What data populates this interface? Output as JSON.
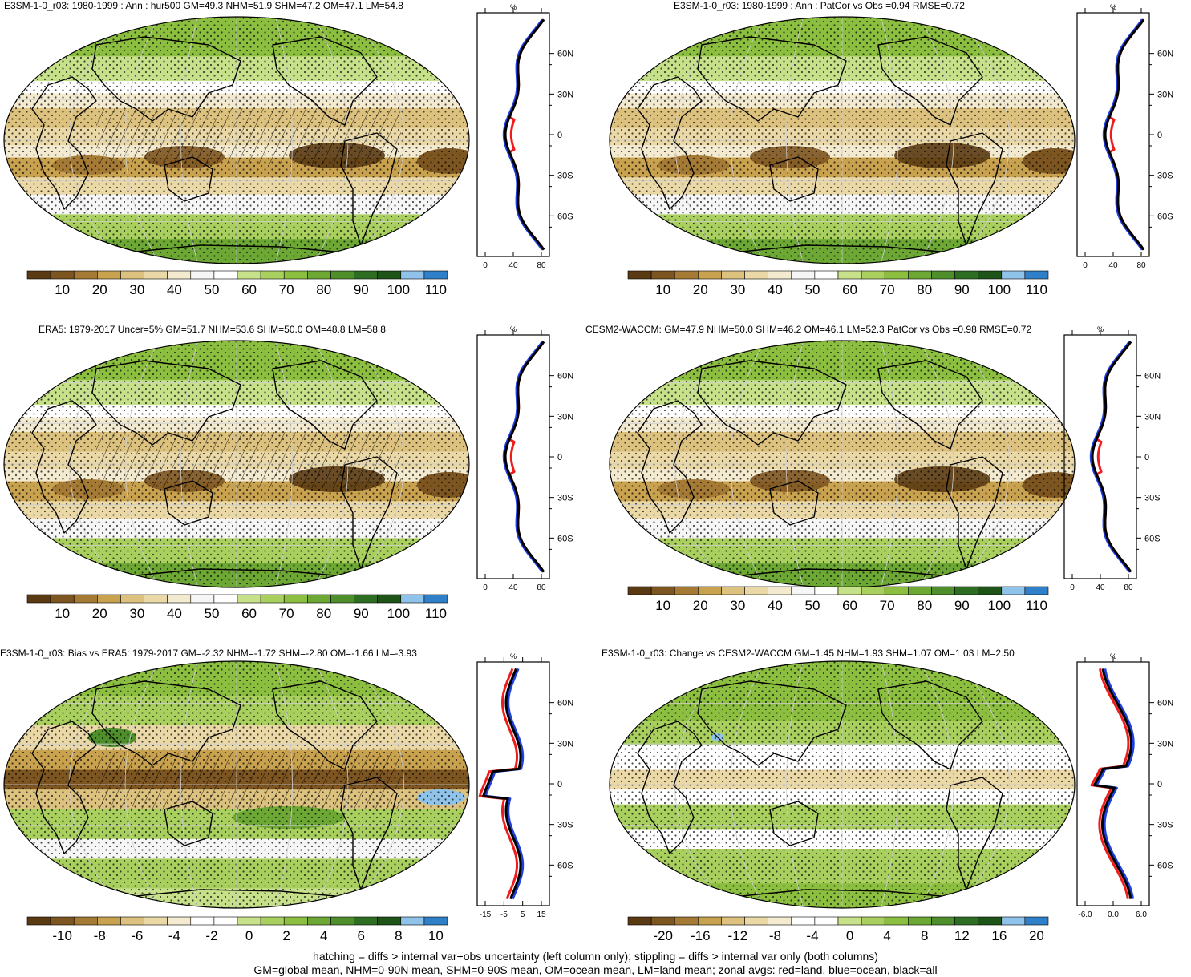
{
  "panels": [
    {
      "title": "E3SM-1-0_r03: 1980-1999 : Ann : hur500 GM=49.3 NHM=51.9 SHM=47.2 OM=47.1 LM=54.8",
      "kind": "abs",
      "colorbar_ticks": [
        "10",
        "20",
        "30",
        "40",
        "50",
        "60",
        "70",
        "80",
        "90",
        "100",
        "110"
      ],
      "zonal_xticks": [
        "0",
        "40",
        "80"
      ],
      "zonal_yticks": [
        "60N",
        "30N",
        "0",
        "30S",
        "60S"
      ],
      "zonal_unit": "%"
    },
    {
      "title": "E3SM-1-0_r03: 1980-1999 : Ann : PatCor vs Obs =0.94 RMSE=0.72",
      "kind": "abs",
      "colorbar_ticks": [
        "10",
        "20",
        "30",
        "40",
        "50",
        "60",
        "70",
        "80",
        "90",
        "100",
        "110"
      ],
      "zonal_xticks": [
        "0",
        "40",
        "80"
      ],
      "zonal_yticks": [
        "60N",
        "30N",
        "0",
        "30S",
        "60S"
      ],
      "zonal_unit": "%"
    },
    {
      "title": "ERA5: 1979-2017 Uncer=5% GM=51.7 NHM=53.6 SHM=50.0 OM=48.8 LM=58.8",
      "kind": "abs",
      "colorbar_ticks": [
        "10",
        "20",
        "30",
        "40",
        "50",
        "60",
        "70",
        "80",
        "90",
        "100",
        "110"
      ],
      "zonal_xticks": [
        "0",
        "40",
        "80"
      ],
      "zonal_yticks": [
        "60N",
        "30N",
        "0",
        "30S",
        "60S"
      ],
      "zonal_unit": "%"
    },
    {
      "title": "CESM2-WACCM: GM=47.9 NHM=50.0 SHM=46.2 OM=46.1 LM=52.3 PatCor vs Obs =0.98 RMSE=0.72",
      "kind": "abs",
      "colorbar_ticks": [
        "10",
        "20",
        "30",
        "40",
        "50",
        "60",
        "70",
        "80",
        "90",
        "100",
        "110"
      ],
      "zonal_xticks": [
        "0",
        "40",
        "80"
      ],
      "zonal_yticks": [
        "60N",
        "30N",
        "0",
        "30S",
        "60S"
      ],
      "zonal_unit": "%"
    },
    {
      "title": "E3SM-1-0_r03: Bias vs ERA5: 1979-2017 GM=-2.32 NHM=-1.72 SHM=-2.80 OM=-1.66 LM=-3.93",
      "kind": "bias",
      "colorbar_ticks": [
        "-10",
        "-8",
        "-6",
        "-4",
        "-2",
        "0",
        "2",
        "4",
        "6",
        "8",
        "10"
      ],
      "zonal_xticks": [
        "-15",
        "-5",
        "5",
        "15"
      ],
      "zonal_yticks": [
        "60N",
        "30N",
        "0",
        "30S",
        "60S"
      ],
      "zonal_unit": "%"
    },
    {
      "title": "E3SM-1-0_r03: Change vs CESM2-WACCM GM=1.45 NHM=1.93 SHM=1.07 OM=1.03 LM=2.50",
      "kind": "change",
      "colorbar_ticks": [
        "-20",
        "-16",
        "-12",
        "-8",
        "-4",
        "0",
        "4",
        "8",
        "12",
        "16",
        "20"
      ],
      "zonal_xticks": [
        "-6.0",
        "0.0",
        "6.0"
      ],
      "zonal_yticks": [
        "60N",
        "30N",
        "0",
        "30S",
        "60S"
      ],
      "zonal_unit": "%"
    }
  ],
  "palette": [
    "#5a3a12",
    "#7d5520",
    "#a57a35",
    "#c9a24f",
    "#dcc27e",
    "#ead8a6",
    "#f3ead0",
    "#f6f6f6",
    "#ffffff",
    "#c7e18a",
    "#a9d05f",
    "#8cbf3f",
    "#6da834",
    "#4e8f2c",
    "#2e6e23",
    "#1e5418",
    "#8fc3ea",
    "#2f7fc9"
  ],
  "line_colors": {
    "land": "#ee1c1c",
    "ocean": "#1f3fdd",
    "all": "#000000"
  },
  "footer": {
    "line1": "hatching = diffs > internal var+obs uncertainty (left column only); stippling = diffs > internal var only (both columns)",
    "line2": "GM=global mean, NHM=0-90N mean, SHM=0-90S mean, OM=ocean mean, LM=land mean; zonal avgs: red=land, blue=ocean, black=all"
  }
}
